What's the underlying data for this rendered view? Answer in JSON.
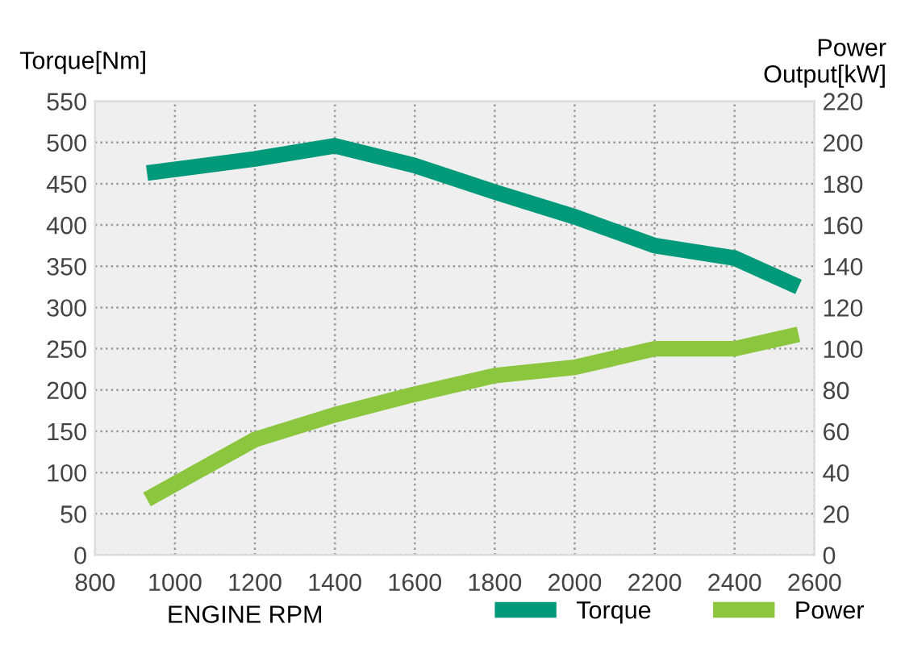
{
  "chart_data": {
    "type": "line",
    "xlabel": "ENGINE RPM",
    "ylabel": "Torque[Nm]",
    "y2label": "Power\nOutput[kW]",
    "x": [
      930,
      1200,
      1400,
      1600,
      1800,
      2000,
      2200,
      2400,
      2560
    ],
    "series": [
      {
        "name": "Torque",
        "color": "#00997a",
        "values": [
          463,
          480,
          496,
          472,
          440,
          410,
          375,
          360,
          325
        ]
      },
      {
        "name": "Power",
        "color": "#8cc63f",
        "axis": "y2",
        "values": [
          27,
          56,
          68,
          78,
          87,
          91,
          100,
          100,
          107
        ]
      }
    ],
    "xlim": [
      800,
      2600
    ],
    "xticks": [
      800,
      1000,
      1200,
      1400,
      1600,
      1800,
      2000,
      2200,
      2400,
      2600
    ],
    "ylim": [
      0,
      550
    ],
    "yticks": [
      0,
      50,
      100,
      150,
      200,
      250,
      300,
      350,
      400,
      450,
      500,
      550
    ],
    "y2lim": [
      0,
      220
    ],
    "y2ticks": [
      0,
      20,
      40,
      60,
      80,
      100,
      120,
      140,
      160,
      180,
      200,
      220
    ],
    "grid": true,
    "legend": "bottom right",
    "marker": "none",
    "line_style": "solid"
  }
}
